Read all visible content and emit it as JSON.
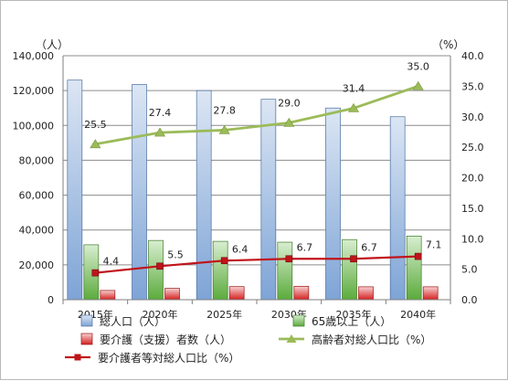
{
  "chart_data": {
    "type": "bar",
    "categories": [
      "2015年",
      "2020年",
      "2025年",
      "2030年",
      "2035年",
      "2040年"
    ],
    "y_left": {
      "unit": "（人）",
      "min": 0,
      "max": 140000,
      "step": 20000,
      "ticks": [
        "0",
        "20,000",
        "40,000",
        "60,000",
        "80,000",
        "100,000",
        "120,000",
        "140,000"
      ]
    },
    "y_right": {
      "unit": "（%）",
      "min": 0,
      "max": 40,
      "step": 5,
      "ticks": [
        "0.0",
        "5.0",
        "10.0",
        "15.0",
        "20.0",
        "25.0",
        "30.0",
        "35.0",
        "40.0"
      ]
    },
    "bar_series": [
      {
        "name": "総人口（人）",
        "values": [
          126000,
          123500,
          120000,
          115000,
          110000,
          105000
        ],
        "color_top": "#dce6f4",
        "color_bottom": "#7ea4d6",
        "stroke": "#4a6f9f"
      },
      {
        "name": "65歳以上（人）",
        "values": [
          31500,
          34000,
          33500,
          33000,
          34500,
          36500
        ],
        "color_top": "#d8eed0",
        "color_bottom": "#5bab3c",
        "stroke": "#3f7a28"
      },
      {
        "name": "要介護（支援）者数（人）",
        "values": [
          5300,
          6500,
          7500,
          7700,
          7400,
          7400
        ],
        "color_top": "#f7d0d0",
        "color_bottom": "#d42020",
        "stroke": "#9a1414"
      }
    ],
    "line_series": [
      {
        "name": "高齢者対総人口比（%）",
        "values": [
          25.5,
          27.4,
          27.8,
          29.0,
          31.4,
          35.0
        ],
        "labels": [
          "25.5",
          "27.4",
          "27.8",
          "29.0",
          "31.4",
          "35.0"
        ],
        "color": "#9bbb59",
        "marker": "triangle"
      },
      {
        "name": "要介護者等対総人口比（%）",
        "values": [
          4.4,
          5.5,
          6.4,
          6.7,
          6.7,
          7.1
        ],
        "labels": [
          "4.4",
          "5.5",
          "6.4",
          "6.7",
          "6.7",
          "7.1"
        ],
        "color": "#c0141a",
        "marker": "square"
      }
    ],
    "grid": true,
    "legend_position": "bottom"
  }
}
